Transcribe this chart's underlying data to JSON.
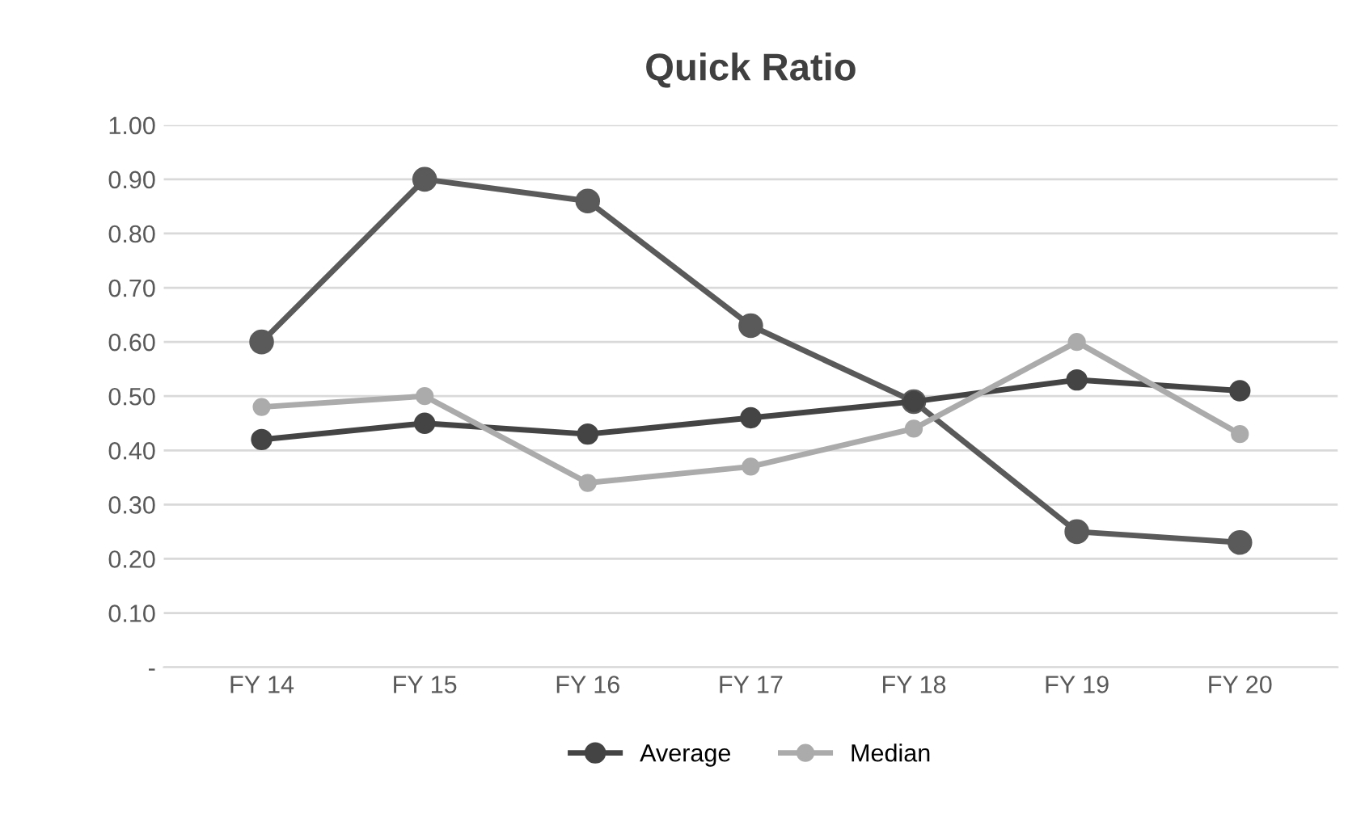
{
  "chart_data": {
    "type": "line",
    "title": "Quick Ratio",
    "categories": [
      "FY 14",
      "FY 15",
      "FY 16",
      "FY 17",
      "FY 18",
      "FY 19",
      "FY 20"
    ],
    "series": [
      {
        "color": "#5a5a5a",
        "values": [
          0.6,
          0.9,
          0.86,
          0.63,
          0.49,
          0.25,
          0.23
        ]
      },
      {
        "name": "Average",
        "color": "#444444",
        "values": [
          0.42,
          0.45,
          0.43,
          0.46,
          0.49,
          0.53,
          0.51
        ]
      },
      {
        "name": "Median",
        "color": "#ababab",
        "values": [
          0.48,
          0.5,
          0.34,
          0.37,
          0.44,
          0.6,
          0.43
        ]
      }
    ],
    "ylim": [
      0,
      1.0
    ],
    "yticks": [
      {
        "value": 0,
        "label": "-"
      },
      {
        "value": 0.1,
        "label": "0.10"
      },
      {
        "value": 0.2,
        "label": "0.20"
      },
      {
        "value": 0.3,
        "label": "0.30"
      },
      {
        "value": 0.4,
        "label": "0.40"
      },
      {
        "value": 0.5,
        "label": "0.50"
      },
      {
        "value": 0.6,
        "label": "0.60"
      },
      {
        "value": 0.7,
        "label": "0.70"
      },
      {
        "value": 0.8,
        "label": "0.80"
      },
      {
        "value": 0.9,
        "label": "0.90"
      },
      {
        "value": 1.0,
        "label": "1.00"
      }
    ],
    "grid": "y",
    "legend": "bottom",
    "marker": "circle",
    "line_style": "solid"
  }
}
